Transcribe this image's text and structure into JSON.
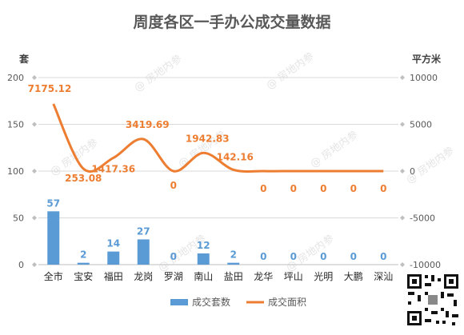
{
  "chart_data": {
    "type": "bar+line",
    "title": "周度各区一手办公成交量数据",
    "left_axis_unit": "套",
    "right_axis_unit": "平方米",
    "left_ylim": [
      0,
      200
    ],
    "left_ticks": [
      "0",
      "50",
      "100",
      "150",
      "200"
    ],
    "right_ylim": [
      -10000,
      10000
    ],
    "right_ticks": [
      "-10000",
      "-5000",
      "0",
      "5000",
      "10000"
    ],
    "categories": [
      "全市",
      "宝安",
      "福田",
      "龙岗",
      "罗湖",
      "南山",
      "盐田",
      "龙华",
      "坪山",
      "光明",
      "大鹏",
      "深汕"
    ],
    "series": [
      {
        "name": "成交套数",
        "type": "bar",
        "axis": "left",
        "color": "#5B9BD5",
        "values": [
          57,
          2,
          14,
          27,
          0,
          12,
          2,
          0,
          0,
          0,
          0,
          0
        ],
        "labels": [
          "57",
          "2",
          "14",
          "27",
          "0",
          "12",
          "2",
          "0",
          "0",
          "0",
          "0",
          "0"
        ]
      },
      {
        "name": "成交面积",
        "type": "line",
        "smooth": true,
        "axis": "right",
        "color": "#ED7D31",
        "values": [
          7175.12,
          253.08,
          1417.36,
          3419.69,
          0,
          1942.83,
          142.16,
          0,
          0,
          0,
          0,
          0
        ],
        "labels": [
          "7175.12",
          "253.08",
          "1417.36",
          "3419.69",
          "0",
          "1942.83",
          "142.16",
          "0",
          "0",
          "0",
          "0",
          "0"
        ]
      }
    ],
    "grid": true,
    "legend_position": "bottom"
  },
  "watermark": "@ 房地内参"
}
